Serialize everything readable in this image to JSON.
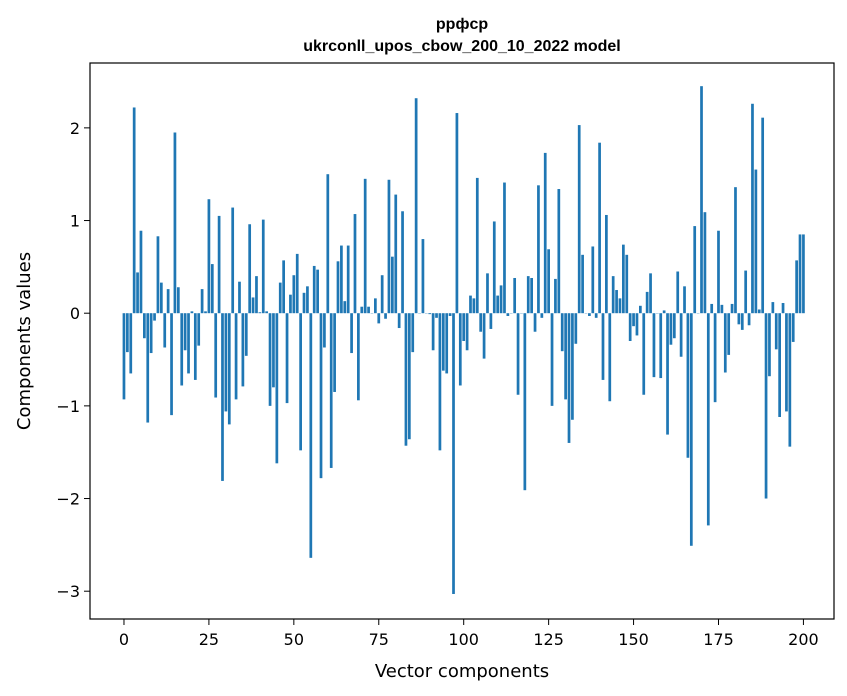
{
  "chart_data": {
    "type": "bar",
    "title": "ррфср",
    "subtitle": "ukrconll_upos_cbow_200_10_2022 model",
    "xlabel": "Vector components",
    "ylabel": "Components values",
    "xlim": [
      -10,
      209
    ],
    "ylim": [
      -3.3,
      2.7
    ],
    "xticks": [
      0,
      25,
      50,
      75,
      100,
      125,
      150,
      175,
      200
    ],
    "yticks": [
      -3,
      -2,
      -1,
      0,
      1,
      2
    ],
    "ytick_labels": [
      "−3",
      "−2",
      "−1",
      "0",
      "1",
      "2"
    ],
    "grid": false,
    "bar_color": "#1f77b4",
    "values": [
      -0.93,
      -0.42,
      -0.65,
      2.22,
      0.44,
      0.89,
      -0.27,
      -1.18,
      -0.43,
      -0.08,
      0.83,
      0.33,
      -0.37,
      0.26,
      -1.1,
      1.95,
      0.28,
      -0.78,
      -0.4,
      -0.65,
      0.02,
      -0.72,
      -0.35,
      0.26,
      0.02,
      1.23,
      0.53,
      -0.91,
      1.05,
      -1.81,
      -1.06,
      -1.2,
      1.14,
      -0.93,
      0.34,
      -0.79,
      -0.46,
      0.96,
      0.17,
      0.4,
      0.01,
      1.01,
      0.02,
      -1.0,
      -0.8,
      -1.62,
      0.33,
      0.57,
      -0.97,
      0.2,
      0.41,
      0.64,
      -1.48,
      0.22,
      0.29,
      -2.64,
      0.51,
      0.47,
      -1.78,
      -0.37,
      1.5,
      -1.67,
      -0.85,
      0.56,
      0.73,
      0.13,
      0.73,
      -0.43,
      1.07,
      -0.94,
      0.07,
      1.45,
      0.07,
      0.0,
      0.16,
      -0.11,
      0.41,
      -0.06,
      1.44,
      0.61,
      1.28,
      -0.16,
      1.1,
      -1.43,
      -1.36,
      -0.42,
      2.32,
      0.0,
      0.8,
      0.0,
      -0.01,
      -0.4,
      -0.05,
      -1.48,
      -0.62,
      -0.65,
      -0.03,
      -3.03,
      2.16,
      -0.78,
      -0.3,
      -0.4,
      0.19,
      0.16,
      1.46,
      -0.2,
      -0.49,
      0.43,
      -0.17,
      0.99,
      0.19,
      0.3,
      1.41,
      -0.03,
      0.0,
      0.38,
      -0.88,
      0.0,
      -1.91,
      0.4,
      0.38,
      -0.2,
      1.38,
      -0.05,
      1.73,
      0.69,
      -1.0,
      0.37,
      1.34,
      -0.41,
      -0.93,
      -1.4,
      -1.15,
      -0.33,
      2.03,
      0.63,
      0.0,
      -0.03,
      0.72,
      -0.05,
      1.84,
      -0.72,
      1.06,
      -0.95,
      0.4,
      0.25,
      0.16,
      0.74,
      0.63,
      -0.3,
      -0.14,
      -0.24,
      0.08,
      -0.88,
      0.23,
      0.43,
      -0.69,
      0.0,
      -0.7,
      0.03,
      -1.31,
      -0.34,
      -0.27,
      0.45,
      -0.47,
      0.29,
      -1.56,
      -2.51,
      0.94,
      0.0,
      2.45,
      1.09,
      -2.29,
      0.1,
      -0.96,
      0.89,
      0.09,
      -0.64,
      -0.45,
      0.1,
      1.36,
      -0.12,
      -0.18,
      0.46,
      -0.13,
      2.26,
      1.55,
      0.04,
      2.11,
      -2.0,
      -0.68,
      0.12,
      -0.39,
      -1.12,
      0.11,
      -1.06,
      -1.44,
      -0.31,
      0.57,
      0.85
    ],
    "extra_values": [
      0.85
    ]
  }
}
